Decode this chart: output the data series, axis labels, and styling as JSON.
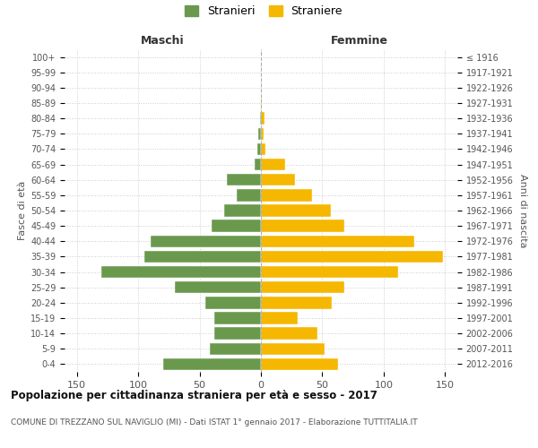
{
  "age_groups_bottom_to_top": [
    "0-4",
    "5-9",
    "10-14",
    "15-19",
    "20-24",
    "25-29",
    "30-34",
    "35-39",
    "40-44",
    "45-49",
    "50-54",
    "55-59",
    "60-64",
    "65-69",
    "70-74",
    "75-79",
    "80-84",
    "85-89",
    "90-94",
    "95-99",
    "100+"
  ],
  "birth_years_bottom_to_top": [
    "2012-2016",
    "2007-2011",
    "2002-2006",
    "1997-2001",
    "1992-1996",
    "1987-1991",
    "1982-1986",
    "1977-1981",
    "1972-1976",
    "1967-1971",
    "1962-1966",
    "1957-1961",
    "1952-1956",
    "1947-1951",
    "1942-1946",
    "1937-1941",
    "1932-1936",
    "1927-1931",
    "1922-1926",
    "1917-1921",
    "≤ 1916"
  ],
  "maschi": [
    80,
    42,
    38,
    38,
    45,
    70,
    130,
    95,
    90,
    40,
    30,
    20,
    28,
    5,
    3,
    2,
    1,
    0,
    0,
    0,
    0
  ],
  "femmine": [
    63,
    52,
    46,
    30,
    58,
    68,
    112,
    148,
    125,
    68,
    57,
    42,
    28,
    20,
    4,
    2,
    3,
    1,
    0,
    0,
    0
  ],
  "maschi_color": "#6a994e",
  "femmine_color": "#f5b700",
  "bg_color": "#ffffff",
  "grid_color": "#cccccc",
  "xlim": 160,
  "title": "Popolazione per cittadinanza straniera per età e sesso - 2017",
  "subtitle": "COMUNE DI TREZZANO SUL NAVIGLIO (MI) - Dati ISTAT 1° gennaio 2017 - Elaborazione TUTTITALIA.IT",
  "ylabel_left": "Fasce di età",
  "ylabel_right": "Anni di nascita",
  "legend_maschi": "Stranieri",
  "legend_femmine": "Straniere",
  "maschi_header": "Maschi",
  "femmine_header": "Femmine"
}
